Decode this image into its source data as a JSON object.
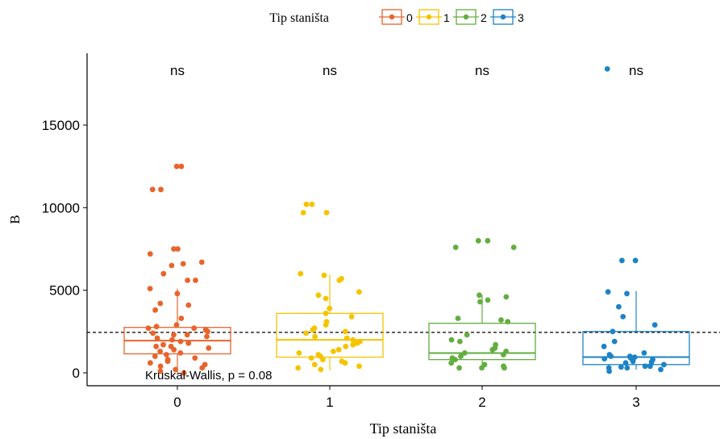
{
  "chart_data": {
    "type": "boxplot",
    "xlabel": "Tip staništa",
    "ylabel": "B",
    "ylim": [
      -600,
      18800
    ],
    "yticks": [
      0,
      5000,
      10000,
      15000
    ],
    "ytick_labels": [
      "0",
      "5000",
      "10000",
      "15000"
    ],
    "categories": [
      "0",
      "1",
      "2",
      "3"
    ],
    "legend": {
      "title": "Tip staništa",
      "position": "top",
      "entries": [
        "0",
        "1",
        "2",
        "3"
      ]
    },
    "colors": {
      "0": "#E8642C",
      "1": "#F5C400",
      "2": "#62AE3F",
      "3": "#1C83C6"
    },
    "reference_line": {
      "y": 2450,
      "style": "dashed"
    },
    "annotation": "Kruskal-Wallis, p = 0.08",
    "significance_labels": [
      "ns",
      "ns",
      "ns",
      "ns"
    ],
    "boxes": [
      {
        "category": "0",
        "whisker_low": 0,
        "q1": 1150,
        "median": 1950,
        "q3": 2750,
        "whisker_high": 5100
      },
      {
        "category": "1",
        "whisker_low": 150,
        "q1": 950,
        "median": 2000,
        "q3": 3600,
        "whisker_high": 5950
      },
      {
        "category": "2",
        "whisker_low": 250,
        "q1": 800,
        "median": 1200,
        "q3": 3000,
        "whisker_high": 4700
      },
      {
        "category": "3",
        "whisker_low": 200,
        "q1": 500,
        "median": 950,
        "q3": 2500,
        "whisker_high": 4950
      }
    ],
    "points": [
      {
        "category": "0",
        "values": [
          12500,
          12500,
          11100,
          11100,
          7500,
          7500,
          7200,
          6700,
          6600,
          6500,
          6000,
          5600,
          5600,
          5100,
          4800,
          4200,
          4100,
          3800,
          3300,
          2900,
          2800,
          2700,
          2600,
          2500,
          2400,
          2300,
          2200,
          2100,
          2000,
          1900,
          1800,
          1700,
          1600,
          1500,
          1400,
          1300,
          1200,
          1100,
          1000,
          900,
          800,
          700,
          600,
          500,
          400,
          300,
          200,
          100,
          0,
          1600,
          2700,
          2300
        ]
      },
      {
        "category": "1",
        "values": [
          10200,
          10200,
          9700,
          9700,
          6000,
          5900,
          5700,
          5600,
          4900,
          4700,
          4500,
          3900,
          3600,
          3400,
          3100,
          2900,
          2700,
          2600,
          2500,
          2400,
          2200,
          2100,
          2000,
          1900,
          1800,
          1700,
          1600,
          1400,
          1300,
          1200,
          1100,
          1000,
          900,
          800,
          700,
          600,
          500,
          400,
          300,
          200
        ]
      },
      {
        "category": "2",
        "values": [
          8000,
          8000,
          7600,
          7600,
          4700,
          4600,
          4400,
          4300,
          3300,
          3200,
          3100,
          2300,
          2000,
          1900,
          1700,
          1500,
          1400,
          1300,
          1200,
          1100,
          1000,
          900,
          800,
          600,
          500,
          400,
          300,
          300,
          300
        ]
      },
      {
        "category": "3",
        "values": [
          18400,
          6800,
          6800,
          4900,
          4800,
          4000,
          3400,
          2900,
          2500,
          1900,
          1600,
          1200,
          1100,
          1000,
          1000,
          950,
          900,
          850,
          800,
          700,
          650,
          600,
          500,
          400,
          400,
          350,
          300,
          300,
          200,
          100
        ]
      }
    ]
  }
}
